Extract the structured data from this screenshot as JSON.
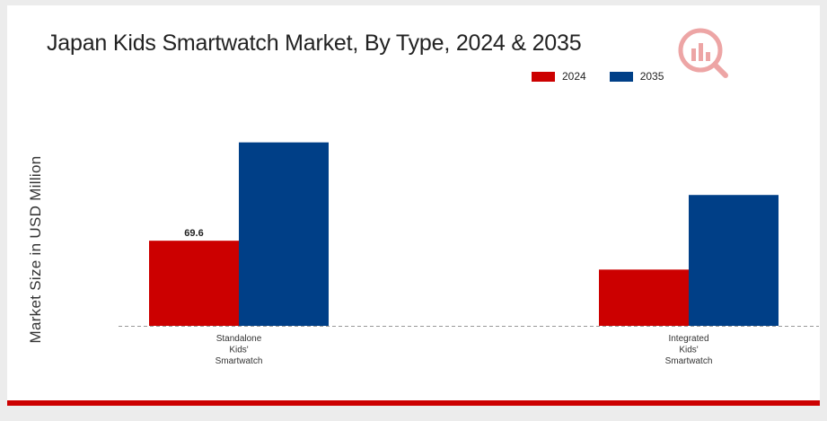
{
  "chart_data": {
    "type": "bar",
    "title": "Japan Kids Smartwatch Market, By Type, 2024 & 2035",
    "ylabel": "Market Size in USD Million",
    "xlabel": "",
    "categories": [
      [
        "Standalone",
        "Kids'",
        "Smartwatch"
      ],
      [
        "Integrated",
        "Kids'",
        "Smartwatch"
      ]
    ],
    "series": [
      {
        "name": "2024",
        "color": "#cc0000",
        "values": [
          69.6,
          46.0
        ]
      },
      {
        "name": "2035",
        "color": "#003f87",
        "values": [
          150.0,
          107.0
        ]
      }
    ],
    "data_labels": [
      {
        "series": 0,
        "category": 0,
        "text": "69.6"
      }
    ],
    "ylim": [
      0,
      160
    ],
    "grid": false,
    "legend_position": "top-right"
  }
}
